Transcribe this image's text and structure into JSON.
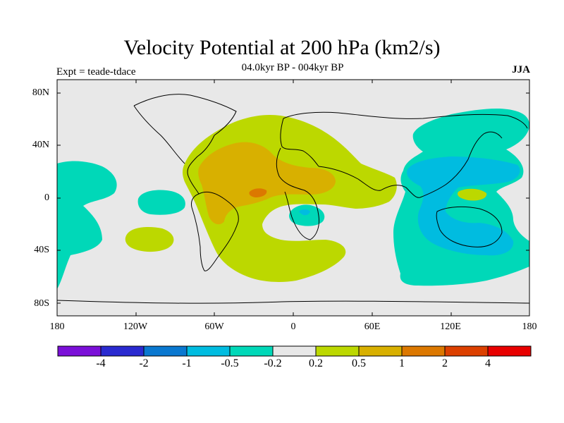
{
  "title": "Velocity Potential at 200 hPa (km2/s)",
  "subtitle": "04.0kyr BP - 004kyr BP",
  "experiment": "Expt = teade-tdace",
  "season": "JJA",
  "lat_ticks": [
    "80N",
    "40N",
    "0",
    "40S",
    "80S"
  ],
  "lon_ticks": [
    "180",
    "120W",
    "60W",
    "0",
    "60E",
    "120E",
    "180"
  ],
  "colorbar": {
    "colors": [
      "#7b10d8",
      "#2a2ad0",
      "#0a78d0",
      "#00bce0",
      "#00d8b8",
      "#e8e8e8",
      "#bcd800",
      "#d8b000",
      "#dc7800",
      "#dc4000",
      "#e80000"
    ],
    "labels": [
      "-4",
      "-2",
      "-1",
      "-0.5",
      "-0.2",
      "0.2",
      "0.5",
      "1",
      "2",
      "4"
    ]
  },
  "map": {
    "background_color": "#e8e8e8",
    "features": [
      {
        "name": "positive-atlantic-region",
        "level": "0.2-0.5",
        "color": "#bcd800"
      },
      {
        "name": "positive-core-region",
        "level": "0.5-1",
        "color": "#d8b000"
      },
      {
        "name": "positive-peak-region",
        "level": "1-2",
        "color": "#dc7800"
      },
      {
        "name": "negative-pacific-region",
        "level": "-0.2 to -0.5",
        "color": "#00d8b8"
      },
      {
        "name": "negative-core-region",
        "level": "-0.5 to -1",
        "color": "#00bce0"
      }
    ]
  }
}
